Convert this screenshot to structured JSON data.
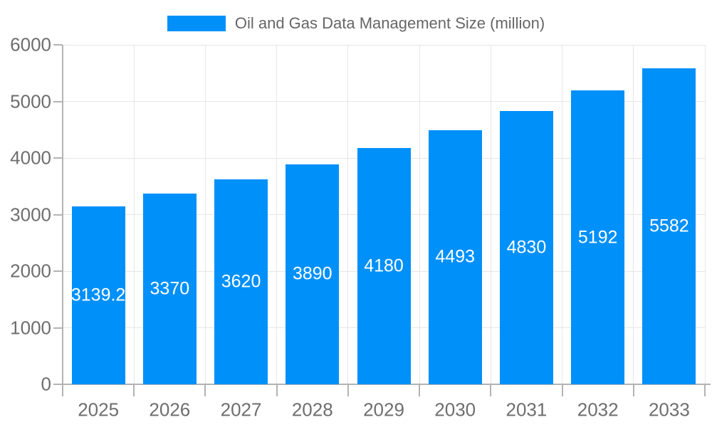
{
  "chart_data": {
    "type": "bar",
    "title": "",
    "legend": {
      "label": "Oil and Gas Data Management Size (million)",
      "position": "top"
    },
    "categories": [
      "2025",
      "2026",
      "2027",
      "2028",
      "2029",
      "2030",
      "2031",
      "2032",
      "2033"
    ],
    "values": [
      3139.2,
      3370,
      3620,
      3890,
      4180,
      4493,
      4830,
      5192,
      5582
    ],
    "value_labels": [
      "3139.2",
      "3370",
      "3620",
      "3890",
      "4180",
      "4493",
      "4830",
      "5192",
      "5582"
    ],
    "xlabel": "",
    "ylabel": "",
    "ylim": [
      0,
      6000
    ],
    "ytick_step": 1000,
    "ytick_labels": [
      "0",
      "1000",
      "2000",
      "3000",
      "4000",
      "5000",
      "6000"
    ],
    "grid": true,
    "colors": {
      "bar": "#0090FA",
      "grid": "#e6e6e6",
      "axis": "#b3b3b3",
      "tick_label": "#6e6e6e",
      "legend_text": "#666666",
      "value_label": "#ffffff",
      "background": "#ffffff"
    }
  }
}
